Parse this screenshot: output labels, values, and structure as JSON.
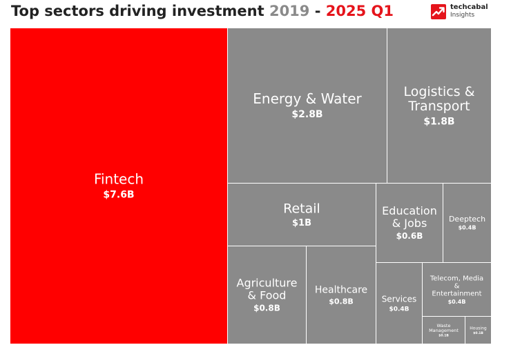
{
  "header": {
    "title_main": "Top sectors driving investment",
    "title_start": "2019",
    "title_sep": "-",
    "title_end": "2025 Q1"
  },
  "logo": {
    "name": "techcabal",
    "sub": "Insights"
  },
  "colors": {
    "highlight": "#ff0000",
    "tile": "#8a8a8a",
    "divider": "#ffffff",
    "title_start": "#8a8a8a",
    "title_end": "#e5141b"
  },
  "chart_data": {
    "type": "treemap",
    "title": "Top sectors driving investment 2019 - 2025 Q1",
    "unit": "USD billions",
    "items": [
      {
        "name": "Fintech",
        "value": 7.6,
        "label": "$7.6B",
        "highlight": true
      },
      {
        "name": "Energy & Water",
        "value": 2.8,
        "label": "$2.8B"
      },
      {
        "name": "Logistics & Transport",
        "value": 1.8,
        "label": "$1.8B"
      },
      {
        "name": "Retail",
        "value": 1.0,
        "label": "$1B"
      },
      {
        "name": "Education & Jobs",
        "value": 0.6,
        "label": "$0.6B"
      },
      {
        "name": "Deeptech",
        "value": 0.4,
        "label": "$0.4B"
      },
      {
        "name": "Agriculture & Food",
        "value": 0.8,
        "label": "$0.8B"
      },
      {
        "name": "Healthcare",
        "value": 0.8,
        "label": "$0.8B"
      },
      {
        "name": "Services",
        "value": 0.4,
        "label": "$0.4B"
      },
      {
        "name": "Telecom, Media & Entertainment",
        "value": 0.4,
        "label": "$0.4B"
      },
      {
        "name": "Waste Management",
        "value": 0.1,
        "label": "$0.1B"
      },
      {
        "name": "Housing",
        "value": 0.1,
        "label": "$0.1B"
      }
    ]
  }
}
